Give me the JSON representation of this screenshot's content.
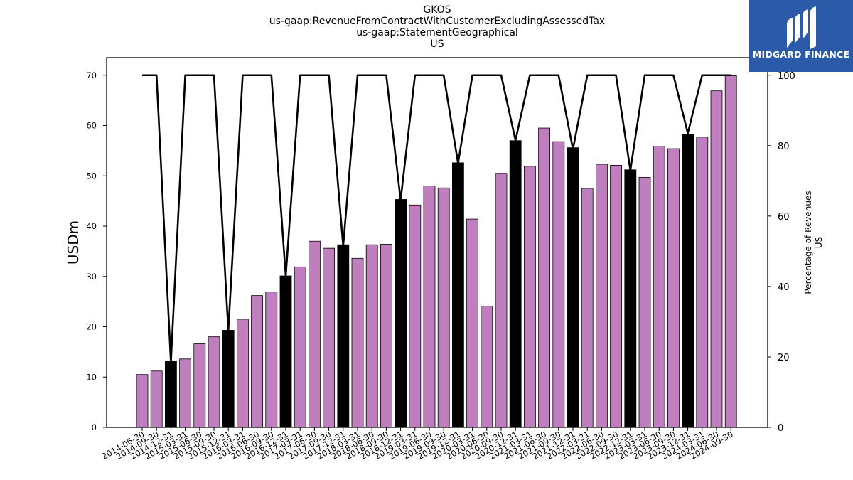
{
  "header": {
    "title_lines": [
      "GKOS",
      "us-gaap:RevenueFromContractWithCustomerExcludingAssessedTax",
      "us-gaap:StatementGeographical",
      "US"
    ]
  },
  "brand": {
    "name": "MIDGARD FINANCE",
    "color": "#2b5aa8"
  },
  "chart_data": {
    "type": "bar",
    "title": "GKOS",
    "ylabel": "USDm",
    "y2label": [
      "Percentage of Revenues",
      "US"
    ],
    "ylim": [
      0,
      73.5
    ],
    "y2lim": [
      0,
      105
    ],
    "yticks": [
      0,
      10,
      20,
      30,
      40,
      50,
      60,
      70
    ],
    "y2ticks": [
      0,
      20,
      40,
      60,
      80,
      100
    ],
    "bar_colors": {
      "quarter": "#bf7fbf",
      "annual": "#000000",
      "edge": "#000000"
    },
    "line_color": "#000000",
    "categories": [
      "2014-06-30",
      "2014-09-30",
      "2014-12-31",
      "2015-03-31",
      "2015-06-30",
      "2015-09-30",
      "2015-12-31",
      "2016-03-31",
      "2016-06-30",
      "2016-09-30",
      "2016-12-31",
      "2017-03-31",
      "2017-06-30",
      "2017-09-30",
      "2017-12-31",
      "2018-03-31",
      "2018-06-30",
      "2018-09-30",
      "2018-12-31",
      "2019-03-31",
      "2019-06-30",
      "2019-09-30",
      "2019-12-31",
      "2020-03-31",
      "2020-06-30",
      "2020-09-30",
      "2020-12-31",
      "2021-03-31",
      "2021-06-30",
      "2021-09-30",
      "2021-12-31",
      "2022-03-31",
      "2022-06-30",
      "2022-09-30",
      "2022-12-31",
      "2023-03-31",
      "2023-06-30",
      "2023-09-30",
      "2023-12-31",
      "2024-03-31",
      "2024-06-30",
      "2024-09-30"
    ],
    "series": [
      {
        "values": [
          10.5,
          11.2,
          13.2,
          13.6,
          16.6,
          18.0,
          19.3,
          21.5,
          26.2,
          26.9,
          30.1,
          31.9,
          37.0,
          35.6,
          36.3,
          33.6,
          36.3,
          36.4,
          45.3,
          44.2,
          48.0,
          47.6,
          52.6,
          41.4,
          24.1,
          50.5,
          57.0,
          51.9,
          59.5,
          56.8,
          55.6,
          47.5,
          52.3,
          52.1,
          51.2,
          49.7,
          55.9,
          55.4,
          58.3,
          57.7,
          66.9,
          69.9
        ],
        "is_annual": [
          false,
          false,
          true,
          false,
          false,
          false,
          true,
          false,
          false,
          false,
          true,
          false,
          false,
          false,
          true,
          false,
          false,
          false,
          true,
          false,
          false,
          false,
          true,
          false,
          false,
          false,
          true,
          false,
          false,
          false,
          true,
          false,
          false,
          false,
          true,
          false,
          false,
          false,
          true,
          false,
          false,
          false
        ]
      },
      {
        "values": [
          100,
          100,
          18.5,
          100,
          100,
          100,
          27.5,
          100,
          100,
          100,
          43,
          100,
          100,
          100,
          51.5,
          100,
          100,
          100,
          64.5,
          100,
          100,
          100,
          75,
          100,
          100,
          100,
          81.5,
          100,
          100,
          100,
          79,
          100,
          100,
          100,
          73,
          100,
          100,
          100,
          83.5,
          100,
          100,
          100
        ]
      }
    ]
  }
}
